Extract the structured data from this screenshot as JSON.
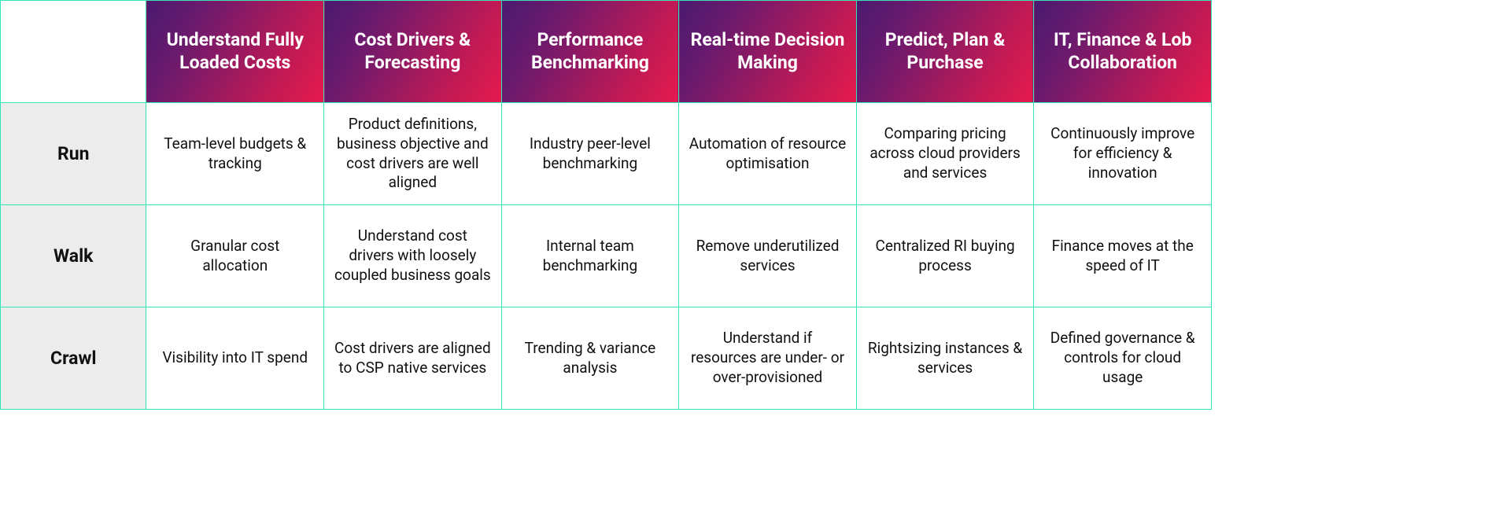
{
  "type": "table",
  "border_color": "#2ee6b6",
  "header_gradient": [
    "#4a1a6e",
    "#6a1a6e",
    "#c21a54",
    "#e61a4f"
  ],
  "header_text_color": "#ffffff",
  "row_header_bg": "#ececec",
  "cell_bg": "#ffffff",
  "text_color": "#111111",
  "header_fontsize": 23,
  "row_header_fontsize": 23,
  "cell_fontsize": 19,
  "columns": [
    "Understand Fully Loaded Costs",
    "Cost Drivers & Forecasting",
    "Performance Benchmarking",
    "Real-time Decision Making",
    "Predict, Plan & Purchase",
    "IT, Finance & Lob Collaboration"
  ],
  "row_headers": [
    "Run",
    "Walk",
    "Crawl"
  ],
  "rows": [
    [
      "Team-level budgets & tracking",
      "Product definitions, business objective and cost drivers are well aligned",
      "Industry peer-level benchmarking",
      "Automation of resource optimisation",
      "Comparing pricing across cloud providers and services",
      "Continuously improve for efficiency & innovation"
    ],
    [
      "Granular cost allocation",
      "Understand cost drivers with loosely coupled business goals",
      "Internal team benchmarking",
      "Remove underutilized services",
      "Centralized RI buying process",
      "Finance moves at the speed of IT"
    ],
    [
      "Visibility into IT spend",
      "Cost drivers are aligned to CSP native services",
      "Trending & variance analysis",
      "Understand if resources are under- or over-provisioned",
      "Rightsizing instances & services",
      "Defined governance & controls for cloud usage"
    ]
  ]
}
